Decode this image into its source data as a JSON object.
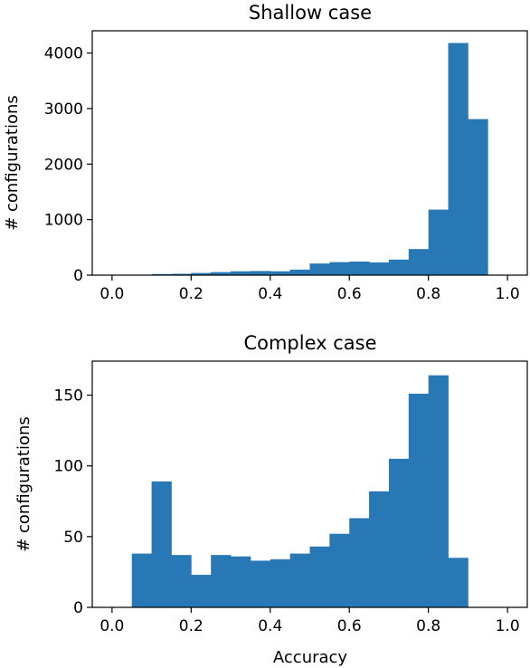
{
  "chart_data": [
    {
      "type": "bar",
      "title": "Shallow case",
      "xlabel": "",
      "ylabel": "# configurations",
      "bin_edges": [
        0.0,
        0.05,
        0.1,
        0.15,
        0.2,
        0.25,
        0.3,
        0.35,
        0.4,
        0.45,
        0.5,
        0.55,
        0.6,
        0.65,
        0.7,
        0.75,
        0.8,
        0.85,
        0.9,
        0.95,
        1.0
      ],
      "values": [
        5,
        5,
        20,
        25,
        40,
        55,
        70,
        75,
        70,
        100,
        210,
        235,
        245,
        230,
        280,
        470,
        1180,
        4180,
        2810,
        0
      ],
      "xlim": [
        -0.05,
        1.05
      ],
      "ylim": [
        0,
        4400
      ],
      "xticks": [
        0.0,
        0.2,
        0.4,
        0.6,
        0.8,
        1.0
      ],
      "xtick_labels": [
        "0.0",
        "0.2",
        "0.4",
        "0.6",
        "0.8",
        "1.0"
      ],
      "yticks": [
        0,
        1000,
        2000,
        3000,
        4000
      ],
      "ytick_labels": [
        "0",
        "1000",
        "2000",
        "3000",
        "4000"
      ],
      "color": "#2878b5",
      "grid": false
    },
    {
      "type": "bar",
      "title": "Complex case",
      "xlabel": "Accuracy",
      "ylabel": "# configurations",
      "bin_edges": [
        0.0,
        0.05,
        0.1,
        0.15,
        0.2,
        0.25,
        0.3,
        0.35,
        0.4,
        0.45,
        0.5,
        0.55,
        0.6,
        0.65,
        0.7,
        0.75,
        0.8,
        0.85,
        0.9,
        0.95,
        1.0
      ],
      "values": [
        0,
        38,
        89,
        37,
        23,
        37,
        36,
        33,
        34,
        38,
        43,
        52,
        63,
        82,
        105,
        151,
        164,
        35,
        0,
        0
      ],
      "xlim": [
        -0.05,
        1.05
      ],
      "ylim": [
        0,
        174
      ],
      "xticks": [
        0.0,
        0.2,
        0.4,
        0.6,
        0.8,
        1.0
      ],
      "xtick_labels": [
        "0.0",
        "0.2",
        "0.4",
        "0.6",
        "0.8",
        "1.0"
      ],
      "yticks": [
        0,
        50,
        100,
        150
      ],
      "ytick_labels": [
        "0",
        "50",
        "100",
        "150"
      ],
      "color": "#2878b5",
      "grid": false
    }
  ]
}
